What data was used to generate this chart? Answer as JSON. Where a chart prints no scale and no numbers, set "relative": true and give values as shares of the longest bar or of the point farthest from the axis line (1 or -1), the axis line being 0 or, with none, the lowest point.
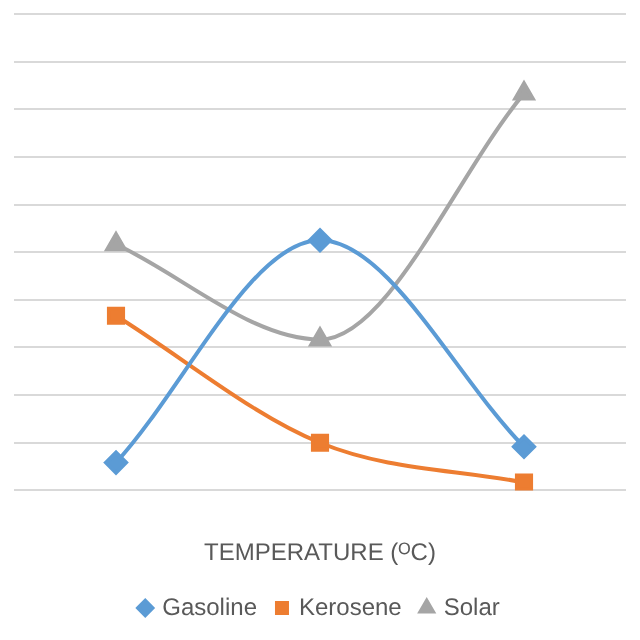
{
  "chart_data": {
    "type": "line",
    "xlabel": "TEMPERATURE (ᴼC)",
    "categories": [
      null,
      null,
      null
    ],
    "relative": true,
    "grid": "y",
    "legend": "bottom",
    "series": [
      {
        "name": "Gasoline",
        "color": "#5b9bd5",
        "marker": "diamond",
        "values": [
          0.07,
          0.63,
          0.11
        ]
      },
      {
        "name": "Kerosene",
        "color": "#ed7d31",
        "marker": "square",
        "values": [
          0.44,
          0.12,
          0.02
        ]
      },
      {
        "name": "Solar",
        "color": "#a5a5a5",
        "marker": "triangle",
        "values": [
          0.62,
          0.38,
          1
        ]
      }
    ]
  }
}
